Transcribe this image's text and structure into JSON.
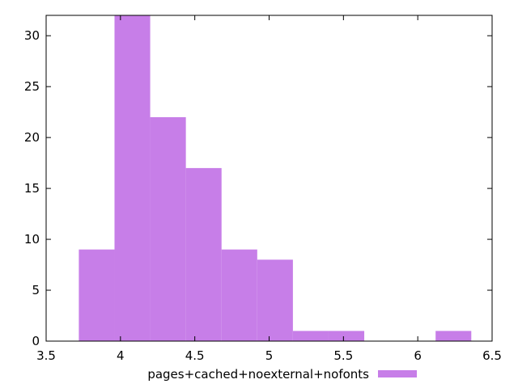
{
  "chart_data": {
    "type": "bar",
    "title": "",
    "xlabel": "",
    "ylabel": "",
    "xlim": [
      3.5,
      6.5
    ],
    "ylim": [
      0,
      32
    ],
    "x_ticks": [
      3.5,
      4,
      4.5,
      5,
      5.5,
      6,
      6.5
    ],
    "x_tick_labels": [
      "3.5",
      "4",
      "4.5",
      "5",
      "5.5",
      "6",
      "6.5"
    ],
    "y_ticks": [
      0,
      5,
      10,
      15,
      20,
      25,
      30
    ],
    "y_tick_labels": [
      "0",
      "5",
      "10",
      "15",
      "20",
      "25",
      "30"
    ],
    "grid": false,
    "legend": {
      "position": "bottom-center"
    },
    "series": [
      {
        "name": "pages+cached+noexternal+nofonts",
        "color": "#c77ee8",
        "bins": [
          {
            "x0": 3.72,
            "x1": 3.96,
            "count": 9
          },
          {
            "x0": 3.96,
            "x1": 4.2,
            "count": 32
          },
          {
            "x0": 4.2,
            "x1": 4.44,
            "count": 22
          },
          {
            "x0": 4.44,
            "x1": 4.68,
            "count": 17
          },
          {
            "x0": 4.68,
            "x1": 4.92,
            "count": 9
          },
          {
            "x0": 4.92,
            "x1": 5.16,
            "count": 8
          },
          {
            "x0": 5.16,
            "x1": 5.4,
            "count": 1
          },
          {
            "x0": 5.4,
            "x1": 5.64,
            "count": 1
          },
          {
            "x0": 6.12,
            "x1": 6.36,
            "count": 1
          }
        ]
      }
    ]
  }
}
